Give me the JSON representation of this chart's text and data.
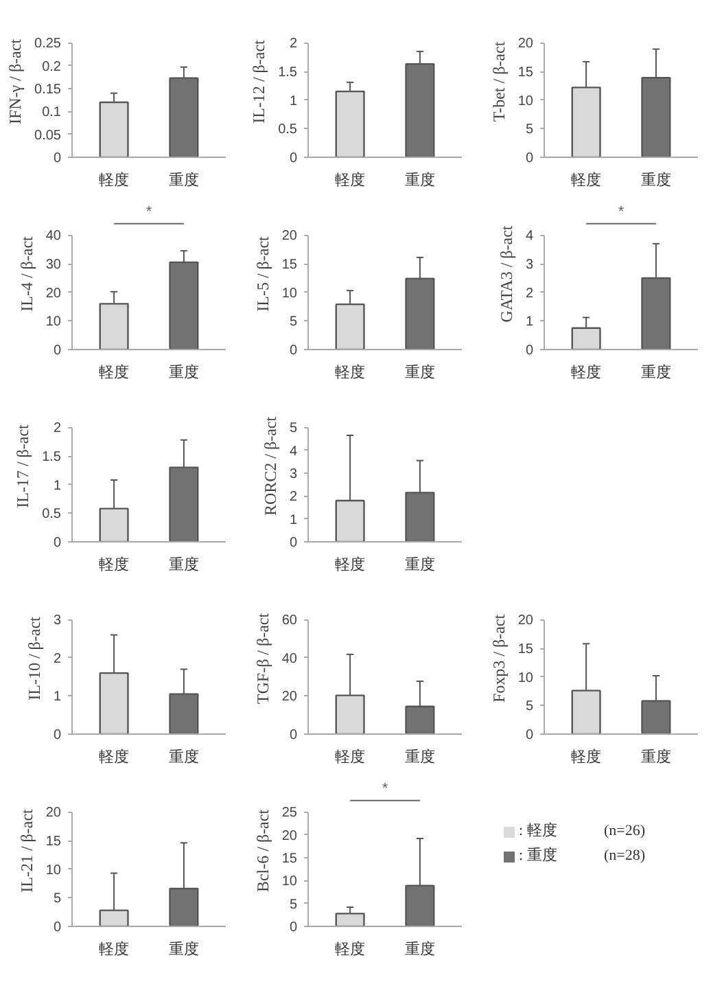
{
  "chart_data": [
    {
      "type": "bar",
      "ylabel": "IFN-γ / β-act",
      "categories": [
        "軽度",
        "重度"
      ],
      "values": [
        0.12,
        0.173
      ],
      "errors": [
        [
          0.12,
          0.14
        ],
        [
          0.173,
          0.197
        ]
      ],
      "colors": [
        "#d9d9d9",
        "#727272"
      ],
      "ylim": [
        0,
        0.25
      ],
      "yticks": [
        0,
        0.05,
        0.1,
        0.15,
        0.2,
        0.25
      ]
    },
    {
      "type": "bar",
      "ylabel": "IL-12 / β-act",
      "categories": [
        "軽度",
        "重度"
      ],
      "values": [
        1.15,
        1.63
      ],
      "errors": [
        [
          1.15,
          1.31
        ],
        [
          1.63,
          1.85
        ]
      ],
      "colors": [
        "#d9d9d9",
        "#727272"
      ],
      "ylim": [
        0,
        2
      ],
      "yticks": [
        0,
        0.5,
        1,
        1.5,
        2
      ]
    },
    {
      "type": "bar",
      "ylabel": "T-bet / β-act",
      "categories": [
        "軽度",
        "重度"
      ],
      "values": [
        12.2,
        13.9
      ],
      "errors": [
        [
          12.2,
          16.7
        ],
        [
          13.9,
          18.9
        ]
      ],
      "colors": [
        "#d9d9d9",
        "#727272"
      ],
      "ylim": [
        0,
        20
      ],
      "yticks": [
        0,
        5,
        10,
        15,
        20
      ]
    },
    {
      "type": "bar",
      "ylabel": "IL-4 / β-act",
      "categories": [
        "軽度",
        "重度"
      ],
      "values": [
        16,
        30.5
      ],
      "errors": [
        [
          16,
          20.2
        ],
        [
          30.5,
          34.5
        ]
      ],
      "colors": [
        "#d9d9d9",
        "#727272"
      ],
      "ylim": [
        0,
        40
      ],
      "yticks": [
        0,
        10,
        20,
        30,
        40
      ],
      "annotations": [
        "*"
      ]
    },
    {
      "type": "bar",
      "ylabel": "IL-5 / β-act",
      "categories": [
        "軽度",
        "重度"
      ],
      "values": [
        7.9,
        12.4
      ],
      "errors": [
        [
          7.9,
          10.3
        ],
        [
          12.4,
          16.1
        ]
      ],
      "colors": [
        "#d9d9d9",
        "#727272"
      ],
      "ylim": [
        0,
        20
      ],
      "yticks": [
        0,
        5,
        10,
        15,
        20
      ]
    },
    {
      "type": "bar",
      "ylabel": "GATA3 / β-act",
      "categories": [
        "軽度",
        "重度"
      ],
      "values": [
        0.75,
        2.5
      ],
      "errors": [
        [
          0.75,
          1.12
        ],
        [
          2.5,
          3.7
        ]
      ],
      "colors": [
        "#d9d9d9",
        "#727272"
      ],
      "ylim": [
        0,
        4
      ],
      "yticks": [
        0,
        1,
        2,
        3,
        4
      ],
      "annotations": [
        "*"
      ]
    },
    {
      "type": "bar",
      "ylabel": "IL-17 / β-act",
      "categories": [
        "軽度",
        "重度"
      ],
      "values": [
        0.58,
        1.3
      ],
      "errors": [
        [
          0.58,
          1.08
        ],
        [
          1.3,
          1.78
        ]
      ],
      "colors": [
        "#d9d9d9",
        "#727272"
      ],
      "ylim": [
        0,
        2
      ],
      "yticks": [
        0,
        0.5,
        1,
        1.5,
        2
      ]
    },
    {
      "type": "bar",
      "ylabel": "RORC2 / β-act",
      "categories": [
        "軽度",
        "重度"
      ],
      "values": [
        1.8,
        2.15
      ],
      "errors": [
        [
          1.8,
          4.65
        ],
        [
          2.15,
          3.55
        ]
      ],
      "colors": [
        "#d9d9d9",
        "#727272"
      ],
      "ylim": [
        0,
        5
      ],
      "yticks": [
        0,
        1,
        2,
        3,
        4,
        5
      ]
    },
    {
      "type": "bar",
      "ylabel": "IL-10 / β-act",
      "categories": [
        "軽度",
        "重度"
      ],
      "values": [
        1.6,
        1.05
      ],
      "errors": [
        [
          1.6,
          2.6
        ],
        [
          1.05,
          1.7
        ]
      ],
      "colors": [
        "#d9d9d9",
        "#727272"
      ],
      "ylim": [
        0,
        3
      ],
      "yticks": [
        0,
        1,
        2,
        3
      ]
    },
    {
      "type": "bar",
      "ylabel": "TGF-β / β-act",
      "categories": [
        "軽度",
        "重度"
      ],
      "values": [
        20.3,
        14.5
      ],
      "errors": [
        [
          20.3,
          41.8
        ],
        [
          14.5,
          27.7
        ]
      ],
      "colors": [
        "#d9d9d9",
        "#727272"
      ],
      "ylim": [
        0,
        60
      ],
      "yticks": [
        0,
        20,
        40,
        60
      ]
    },
    {
      "type": "bar",
      "ylabel": "Foxp3 / β-act",
      "categories": [
        "軽度",
        "重度"
      ],
      "values": [
        7.6,
        5.8
      ],
      "errors": [
        [
          7.6,
          15.8
        ],
        [
          5.8,
          10.2
        ]
      ],
      "colors": [
        "#d9d9d9",
        "#727272"
      ],
      "ylim": [
        0,
        20
      ],
      "yticks": [
        0,
        5,
        10,
        15,
        20
      ]
    },
    {
      "type": "bar",
      "ylabel": "IL-21 / β-act",
      "categories": [
        "軽度",
        "重度"
      ],
      "values": [
        2.8,
        6.6
      ],
      "errors": [
        [
          2.8,
          9.3
        ],
        [
          6.6,
          14.6
        ]
      ],
      "colors": [
        "#d9d9d9",
        "#727272"
      ],
      "ylim": [
        0,
        20
      ],
      "yticks": [
        0,
        5,
        10,
        15,
        20
      ]
    },
    {
      "type": "bar",
      "ylabel": "Bcl-6 / β-act",
      "categories": [
        "軽度",
        "重度"
      ],
      "values": [
        2.8,
        8.9
      ],
      "errors": [
        [
          2.8,
          4.2
        ],
        [
          8.9,
          19.2
        ]
      ],
      "colors": [
        "#d9d9d9",
        "#727272"
      ],
      "ylim": [
        0,
        25
      ],
      "yticks": [
        0,
        5,
        10,
        15,
        20,
        25
      ],
      "annotations": [
        "*"
      ]
    },
    {
      "type": "other",
      "annotations": [
        ": 軽度",
        "(n=26)",
        ": 重度",
        "(n=28)"
      ],
      "colors": [
        "#d9d9d9",
        "#727272"
      ]
    }
  ]
}
